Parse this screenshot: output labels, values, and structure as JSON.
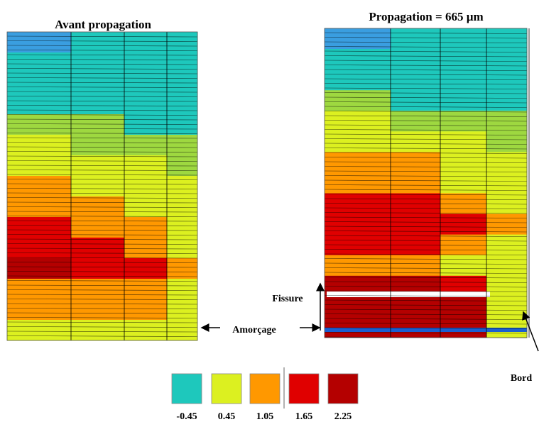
{
  "panels": [
    {
      "title": "Avant propagation"
    },
    {
      "title": "Propagation = 665 µm"
    }
  ],
  "annotations": {
    "fissure": "Fissure",
    "amorcage": "Amorçage",
    "bord": "Bord"
  },
  "legend": {
    "items": [
      {
        "label": "-0.45",
        "color": "#1ec8bc"
      },
      {
        "label": "0.45",
        "color": "#dcf020"
      },
      {
        "label": "1.05",
        "color": "#ff9800"
      },
      {
        "label": "1.65",
        "color": "#e00000"
      },
      {
        "label": "2.25",
        "color": "#b40000"
      }
    ]
  }
}
